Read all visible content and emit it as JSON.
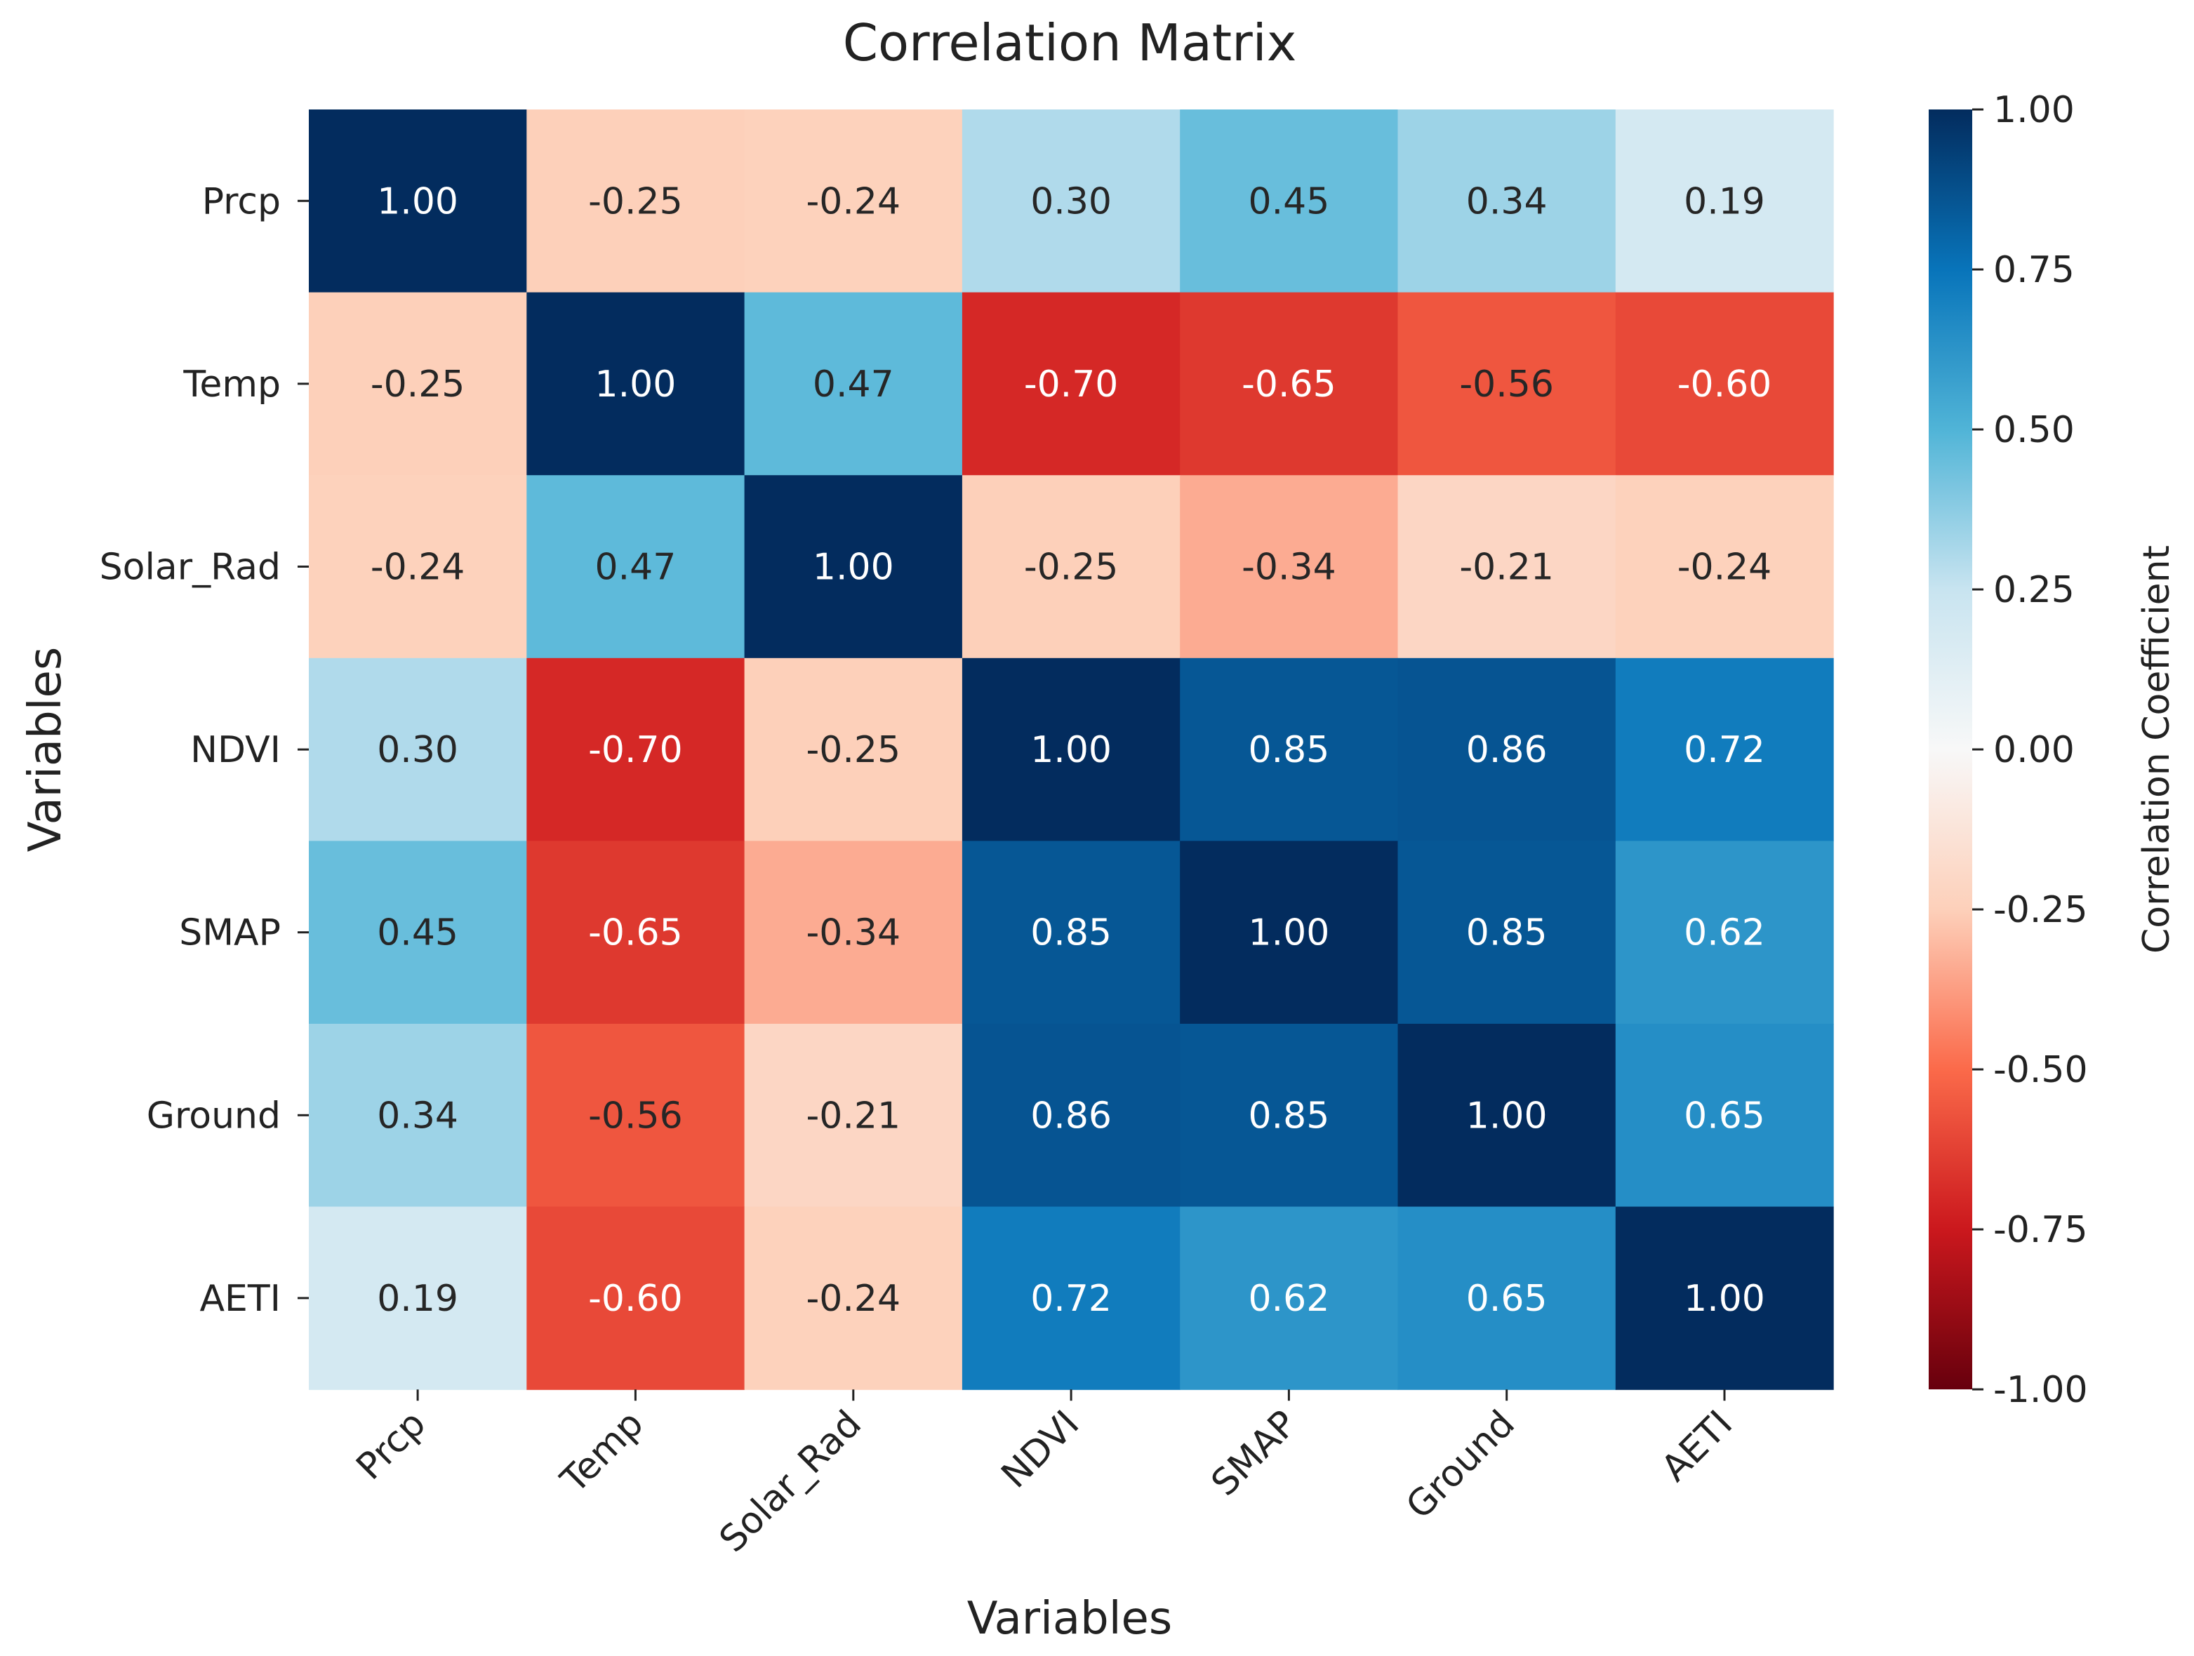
{
  "chart_data": {
    "type": "heatmap",
    "title": "Correlation Matrix",
    "xlabel": "Variables",
    "ylabel": "Variables",
    "colorbar_label": "Correlation Coefficient",
    "colormap": "RdBu",
    "vmin": -1.0,
    "vmax": 1.0,
    "colorbar_ticks": [
      "1.00",
      "0.75",
      "0.50",
      "0.25",
      "0.00",
      "-0.25",
      "-0.50",
      "-0.75",
      "-1.00"
    ],
    "colorbar_tick_values": [
      1.0,
      0.75,
      0.5,
      0.25,
      0.0,
      -0.25,
      -0.5,
      -0.75,
      -1.0
    ],
    "x_labels": [
      "Prcp",
      "Temp",
      "Solar_Rad",
      "NDVI",
      "SMAP",
      "Ground",
      "AETI"
    ],
    "y_labels": [
      "Prcp",
      "Temp",
      "Solar_Rad",
      "NDVI",
      "SMAP",
      "Ground",
      "AETI"
    ],
    "values": [
      [
        1.0,
        -0.25,
        -0.24,
        0.3,
        0.45,
        0.34,
        0.19
      ],
      [
        -0.25,
        1.0,
        0.47,
        -0.7,
        -0.65,
        -0.56,
        -0.6
      ],
      [
        -0.24,
        0.47,
        1.0,
        -0.25,
        -0.34,
        -0.21,
        -0.24
      ],
      [
        0.3,
        -0.7,
        -0.25,
        1.0,
        0.85,
        0.86,
        0.72
      ],
      [
        0.45,
        -0.65,
        -0.34,
        0.85,
        1.0,
        0.85,
        0.62
      ],
      [
        0.34,
        -0.56,
        -0.21,
        0.86,
        0.85,
        1.0,
        0.65
      ],
      [
        0.19,
        -0.6,
        -0.24,
        0.72,
        0.62,
        0.65,
        1.0
      ]
    ]
  }
}
